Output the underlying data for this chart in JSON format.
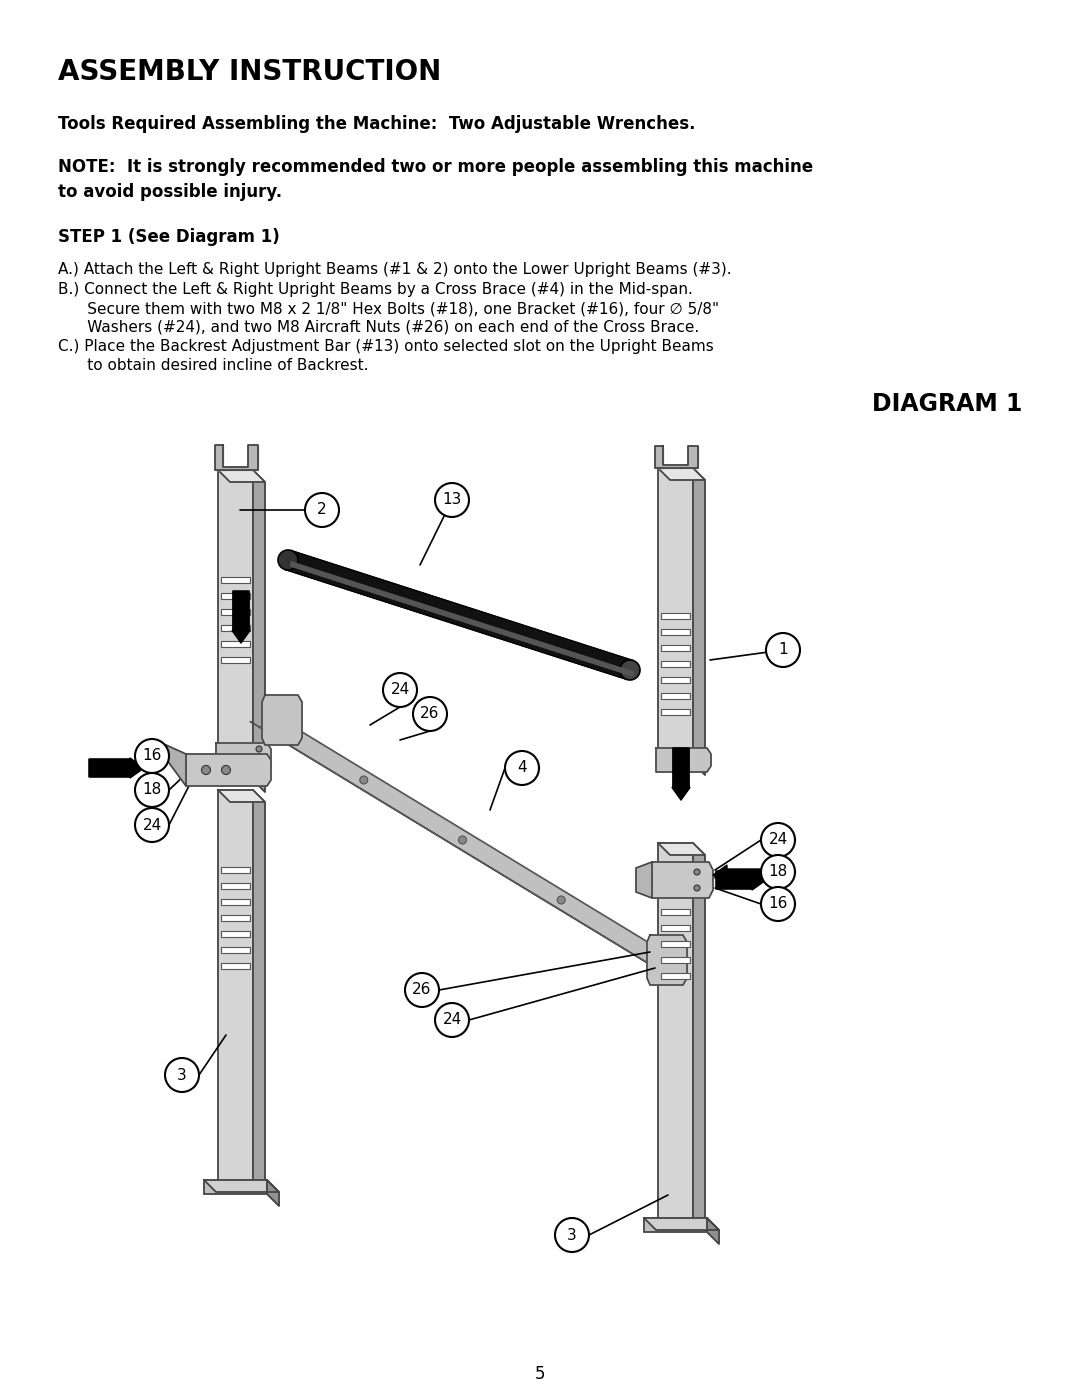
{
  "title": "ASSEMBLY INSTRUCTION",
  "line1": "Tools Required Assembling the Machine:  Two Adjustable Wrenches.",
  "note": "NOTE:  It is strongly recommended two or more people assembling this machine\nto avoid possible injury.",
  "step": "STEP 1 (See Diagram 1)",
  "step_a": "A.) Attach the Left & Right Upright Beams (#1 & 2) onto the Lower Upright Beams (#3).",
  "step_b_line1": "B.) Connect the Left & Right Upright Beams by a Cross Brace (#4) in the Mid-span.",
  "step_b_line2": "      Secure them with two M8 x 2 1/8\" Hex Bolts (#18), one Bracket (#16), four ∅ 5/8\"",
  "step_b_line3": "      Washers (#24), and two M8 Aircraft Nuts (#26) on each end of the Cross Brace.",
  "step_c_line1": "C.) Place the Backrest Adjustment Bar (#13) onto selected slot on the Upright Beams",
  "step_c_line2": "      to obtain desired incline of Backrest.",
  "diagram_label": "DIAGRAM 1",
  "page_number": "5",
  "bg_color": "#ffffff",
  "text_color": "#000000"
}
